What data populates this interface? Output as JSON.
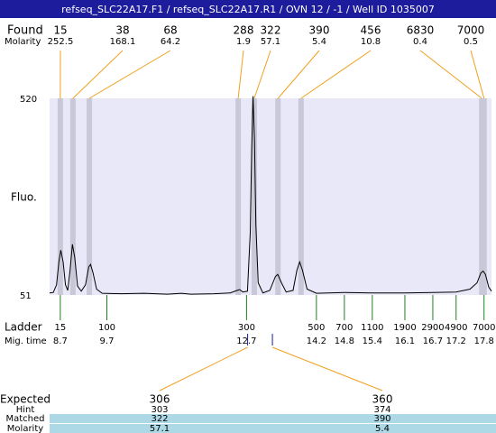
{
  "header": {
    "title": "refseq_SLC22A17.F1 / refseq_SLC22A17.R1 / OVN 12 / -1 / Well ID 1035007"
  },
  "chart_data": {
    "type": "line",
    "y_label": "Fluo.",
    "ylim": [
      51,
      520
    ],
    "yticks": [
      51,
      520
    ],
    "xlim": [
      8.47,
      17.96
    ],
    "x": [
      8.47,
      8.55,
      8.62,
      8.67,
      8.71,
      8.76,
      8.81,
      8.86,
      8.91,
      8.96,
      9.01,
      9.07,
      9.15,
      9.24,
      9.31,
      9.35,
      9.4,
      9.48,
      9.6,
      10.0,
      10.5,
      11.0,
      11.3,
      11.5,
      12.0,
      12.35,
      12.5,
      12.55,
      12.62,
      12.72,
      12.78,
      12.81,
      12.84,
      12.87,
      12.9,
      12.95,
      13.05,
      13.2,
      13.32,
      13.37,
      13.45,
      13.55,
      13.7,
      13.78,
      13.84,
      13.9,
      14.0,
      14.2,
      14.8,
      15.4,
      16.1,
      16.7,
      17.2,
      17.5,
      17.65,
      17.73,
      17.78,
      17.83,
      17.9,
      17.96
    ],
    "y": [
      56,
      57,
      75,
      130,
      158,
      130,
      75,
      62,
      110,
      172,
      140,
      72,
      60,
      75,
      118,
      124,
      105,
      65,
      55,
      54,
      55,
      53,
      55,
      53,
      54,
      56,
      62,
      64,
      58,
      60,
      200,
      400,
      525,
      420,
      220,
      80,
      56,
      62,
      95,
      100,
      80,
      58,
      62,
      110,
      130,
      110,
      65,
      55,
      57,
      56,
      56,
      57,
      58,
      65,
      80,
      103,
      108,
      100,
      70,
      60
    ],
    "color": "#000000",
    "found": {
      "label": "Found",
      "molarity_label": "Molarity",
      "sizes": [
        15,
        38,
        68,
        288,
        322,
        390,
        456,
        6830,
        7000
      ],
      "molarity": [
        252.5,
        168.1,
        64.2,
        1.9,
        57.1,
        5.4,
        10.8,
        0.4,
        0.5
      ]
    },
    "ladder": {
      "label": "Ladder",
      "time_label": "Mig. time",
      "sizes": [
        15,
        100,
        300,
        500,
        700,
        1100,
        1900,
        2900,
        4900,
        7000
      ],
      "times": [
        8.7,
        9.7,
        12.7,
        14.2,
        14.8,
        15.4,
        16.1,
        16.7,
        17.2,
        17.8
      ]
    },
    "expected": {
      "label": "Expected",
      "hint_label": "Hint",
      "matched_label": "Matched",
      "molarity_label": "Molarity",
      "sizes": [
        306,
        360
      ],
      "hint": [
        303,
        374
      ],
      "matched": [
        322,
        390
      ],
      "molarity": [
        57.1,
        5.4
      ]
    }
  }
}
